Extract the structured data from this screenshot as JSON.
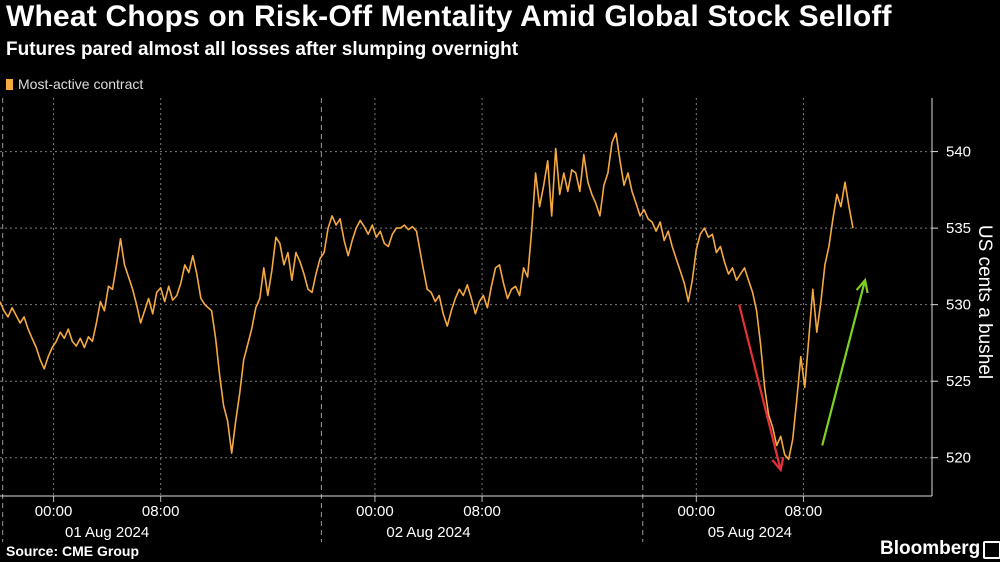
{
  "header": {
    "title": "Wheat Chops on Risk-Off Mentality Amid Global Stock Selloff",
    "subtitle": "Futures pared almost all losses after slumping overnight"
  },
  "footer": {
    "source": "Source: CME Group",
    "brand": "Bloomberg"
  },
  "colors": {
    "background": "#000000",
    "series": "#f5a941",
    "down_arrow": "#e8303a",
    "up_arrow": "#7ed321",
    "grid": "#7a7a7a"
  },
  "chart_data": {
    "type": "line",
    "title": "Wheat Chops on Risk-Off Mentality Amid Global Stock Selloff",
    "subtitle": "Futures pared almost all losses after slumping overnight",
    "ylabel": "US cents a bushel",
    "xlabel": "",
    "ylim": [
      517.5,
      543.5
    ],
    "y_ticks": [
      520,
      525,
      530,
      535,
      540
    ],
    "x_tick_labels": [
      "00:00",
      "08:00",
      "00:00",
      "08:00",
      "00:00",
      "08:00"
    ],
    "x_tick_hours": [
      4,
      12,
      28,
      36,
      52,
      60
    ],
    "day_labels": [
      "01 Aug 2024",
      "02 Aug 2024",
      "05 Aug 2024"
    ],
    "legend": [
      "Most-active contract"
    ],
    "legend_position": "top-left",
    "grid": true,
    "x_unit": "hours since 20:00 on 31 Jul 2024 (session-compressed)",
    "series": [
      {
        "name": "Most-active contract",
        "points": [
          [
            0.0,
            530.2
          ],
          [
            0.3,
            529.6
          ],
          [
            0.6,
            529.2
          ],
          [
            0.9,
            529.8
          ],
          [
            1.2,
            529.3
          ],
          [
            1.5,
            528.8
          ],
          [
            1.8,
            529.2
          ],
          [
            2.1,
            528.4
          ],
          [
            2.4,
            527.8
          ],
          [
            2.7,
            527.2
          ],
          [
            3.0,
            526.4
          ],
          [
            3.3,
            525.8
          ],
          [
            3.6,
            526.6
          ],
          [
            3.9,
            527.2
          ],
          [
            4.2,
            527.6
          ],
          [
            4.5,
            528.2
          ],
          [
            4.8,
            527.8
          ],
          [
            5.1,
            528.4
          ],
          [
            5.4,
            527.6
          ],
          [
            5.7,
            527.3
          ],
          [
            6.0,
            527.8
          ],
          [
            6.3,
            527.2
          ],
          [
            6.6,
            527.9
          ],
          [
            6.9,
            527.6
          ],
          [
            7.2,
            528.8
          ],
          [
            7.5,
            530.2
          ],
          [
            7.8,
            529.6
          ],
          [
            8.1,
            531.2
          ],
          [
            8.4,
            531.0
          ],
          [
            8.7,
            532.6
          ],
          [
            9.0,
            534.3
          ],
          [
            9.3,
            532.6
          ],
          [
            9.6,
            531.8
          ],
          [
            9.9,
            531.0
          ],
          [
            10.2,
            530.0
          ],
          [
            10.5,
            528.8
          ],
          [
            10.8,
            529.6
          ],
          [
            11.1,
            530.4
          ],
          [
            11.4,
            529.4
          ],
          [
            11.7,
            530.8
          ],
          [
            12.0,
            531.1
          ],
          [
            12.3,
            530.2
          ],
          [
            12.6,
            531.2
          ],
          [
            12.9,
            530.3
          ],
          [
            13.2,
            530.6
          ],
          [
            13.5,
            531.4
          ],
          [
            13.8,
            532.6
          ],
          [
            14.1,
            532.1
          ],
          [
            14.4,
            533.2
          ],
          [
            14.7,
            532.0
          ],
          [
            15.0,
            530.4
          ],
          [
            15.3,
            530.0
          ],
          [
            15.8,
            529.6
          ],
          [
            16.1,
            527.8
          ],
          [
            16.4,
            525.4
          ],
          [
            16.7,
            523.4
          ],
          [
            17.0,
            522.4
          ],
          [
            17.3,
            520.3
          ],
          [
            17.6,
            522.4
          ],
          [
            17.9,
            524.2
          ],
          [
            18.2,
            526.4
          ],
          [
            18.5,
            527.4
          ],
          [
            18.8,
            528.4
          ],
          [
            19.1,
            529.8
          ],
          [
            19.4,
            530.4
          ],
          [
            19.7,
            532.4
          ],
          [
            20.0,
            530.6
          ],
          [
            20.3,
            532.2
          ],
          [
            20.6,
            534.4
          ],
          [
            20.9,
            534.0
          ],
          [
            21.2,
            532.6
          ],
          [
            21.5,
            533.4
          ],
          [
            21.8,
            531.6
          ],
          [
            22.1,
            533.4
          ],
          [
            22.4,
            532.8
          ],
          [
            22.7,
            532.0
          ],
          [
            23.0,
            531.0
          ],
          [
            23.3,
            530.8
          ],
          [
            23.6,
            532.0
          ],
          [
            23.9,
            533.0
          ],
          [
            24.2,
            533.4
          ],
          [
            24.5,
            535.0
          ],
          [
            24.8,
            535.8
          ],
          [
            25.1,
            535.2
          ],
          [
            25.4,
            535.6
          ],
          [
            25.7,
            534.2
          ],
          [
            26.0,
            533.2
          ],
          [
            26.3,
            534.2
          ],
          [
            26.6,
            535.0
          ],
          [
            26.9,
            535.5
          ],
          [
            27.2,
            535.1
          ],
          [
            27.5,
            534.6
          ],
          [
            27.8,
            535.2
          ],
          [
            28.1,
            534.4
          ],
          [
            28.4,
            534.8
          ],
          [
            28.7,
            534.0
          ],
          [
            29.0,
            533.8
          ],
          [
            29.3,
            534.6
          ],
          [
            29.6,
            535.0
          ],
          [
            29.9,
            535.0
          ],
          [
            30.2,
            535.2
          ],
          [
            30.5,
            534.9
          ],
          [
            30.8,
            535.1
          ],
          [
            31.1,
            534.8
          ],
          [
            31.6,
            532.4
          ],
          [
            31.9,
            531.0
          ],
          [
            32.2,
            530.8
          ],
          [
            32.5,
            530.2
          ],
          [
            32.8,
            530.6
          ],
          [
            33.1,
            529.4
          ],
          [
            33.4,
            528.6
          ],
          [
            33.7,
            529.6
          ],
          [
            34.0,
            530.4
          ],
          [
            34.3,
            531.0
          ],
          [
            34.6,
            530.6
          ],
          [
            34.9,
            531.3
          ],
          [
            35.2,
            530.4
          ],
          [
            35.5,
            529.4
          ],
          [
            35.8,
            530.2
          ],
          [
            36.1,
            530.6
          ],
          [
            36.4,
            529.8
          ],
          [
            36.7,
            531.2
          ],
          [
            37.0,
            532.4
          ],
          [
            37.3,
            532.6
          ],
          [
            37.6,
            531.4
          ],
          [
            37.9,
            530.4
          ],
          [
            38.2,
            531.0
          ],
          [
            38.5,
            531.2
          ],
          [
            38.8,
            530.6
          ],
          [
            39.1,
            532.4
          ],
          [
            39.4,
            531.8
          ],
          [
            39.7,
            534.8
          ],
          [
            40.0,
            538.6
          ],
          [
            40.3,
            536.4
          ],
          [
            40.6,
            537.8
          ],
          [
            40.9,
            539.4
          ],
          [
            41.2,
            535.8
          ],
          [
            41.5,
            540.2
          ],
          [
            41.8,
            537.2
          ],
          [
            42.1,
            538.6
          ],
          [
            42.4,
            537.4
          ],
          [
            42.7,
            538.8
          ],
          [
            43.0,
            538.6
          ],
          [
            43.3,
            537.4
          ],
          [
            43.6,
            539.8
          ],
          [
            43.9,
            538.0
          ],
          [
            44.2,
            537.2
          ],
          [
            44.5,
            536.6
          ],
          [
            44.8,
            535.8
          ],
          [
            45.1,
            537.8
          ],
          [
            45.4,
            538.6
          ],
          [
            45.7,
            540.6
          ],
          [
            46.0,
            541.2
          ],
          [
            46.3,
            539.4
          ],
          [
            46.6,
            537.8
          ],
          [
            46.9,
            538.6
          ],
          [
            47.2,
            537.4
          ],
          [
            47.5,
            536.6
          ],
          [
            47.8,
            535.8
          ],
          [
            48.1,
            536.2
          ],
          [
            48.4,
            535.6
          ],
          [
            48.7,
            535.4
          ],
          [
            49.0,
            534.8
          ],
          [
            49.3,
            535.4
          ],
          [
            49.6,
            534.2
          ],
          [
            49.9,
            534.8
          ],
          [
            50.2,
            533.8
          ],
          [
            50.5,
            533.0
          ],
          [
            50.8,
            532.2
          ],
          [
            51.1,
            531.4
          ],
          [
            51.4,
            530.2
          ],
          [
            51.7,
            531.6
          ],
          [
            52.0,
            533.6
          ],
          [
            52.3,
            534.6
          ],
          [
            52.6,
            535.0
          ],
          [
            52.9,
            534.4
          ],
          [
            53.2,
            534.6
          ],
          [
            53.5,
            533.4
          ],
          [
            53.8,
            533.8
          ],
          [
            54.1,
            532.8
          ],
          [
            54.4,
            532.0
          ],
          [
            54.7,
            532.4
          ],
          [
            55.0,
            531.6
          ],
          [
            55.3,
            532.0
          ],
          [
            55.6,
            532.4
          ],
          [
            55.9,
            531.6
          ],
          [
            56.2,
            530.8
          ],
          [
            56.5,
            529.6
          ],
          [
            56.8,
            527.4
          ],
          [
            57.1,
            524.6
          ],
          [
            57.4,
            522.8
          ],
          [
            57.7,
            522.0
          ],
          [
            58.0,
            520.8
          ],
          [
            58.3,
            521.4
          ],
          [
            58.6,
            520.2
          ],
          [
            58.9,
            519.9
          ],
          [
            59.2,
            521.2
          ],
          [
            59.5,
            523.8
          ],
          [
            59.8,
            526.6
          ],
          [
            60.1,
            524.6
          ],
          [
            60.4,
            527.8
          ],
          [
            60.7,
            531.0
          ],
          [
            61.0,
            528.2
          ],
          [
            61.3,
            530.2
          ],
          [
            61.6,
            532.6
          ],
          [
            61.9,
            533.8
          ],
          [
            62.2,
            535.6
          ],
          [
            62.5,
            537.2
          ],
          [
            62.8,
            536.4
          ],
          [
            63.1,
            538.0
          ],
          [
            63.4,
            536.4
          ],
          [
            63.7,
            535.0
          ]
        ]
      }
    ],
    "annotations": [
      {
        "type": "arrow",
        "direction": "down",
        "color": "red",
        "from": [
          55.2,
          530.0
        ],
        "to": [
          58.3,
          519.2
        ]
      },
      {
        "type": "arrow",
        "direction": "up",
        "color": "green",
        "from": [
          61.4,
          520.8
        ],
        "to": [
          64.6,
          531.6
        ]
      }
    ]
  }
}
